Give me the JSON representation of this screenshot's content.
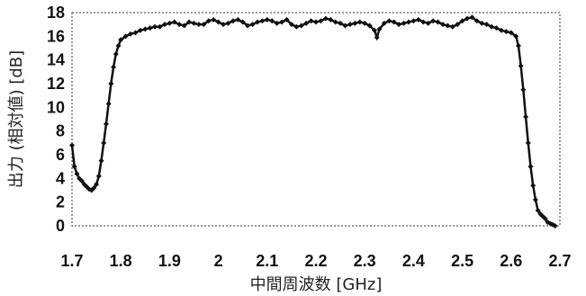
{
  "chart_data": {
    "type": "scatter",
    "title": "",
    "xlabel": "中間周波数 [GHz]",
    "ylabel": "出力 (相対値) [dB]",
    "xlim": [
      1.7,
      2.7
    ],
    "ylim": [
      0,
      18
    ],
    "x_ticks": [
      "1.7",
      "1.8",
      "1.9",
      "2",
      "2.1",
      "2.2",
      "2.3",
      "2.4",
      "2.5",
      "2.6",
      "2.7"
    ],
    "y_ticks": [
      "0",
      "2",
      "4",
      "6",
      "8",
      "10",
      "12",
      "14",
      "16",
      "18"
    ],
    "grid": false,
    "legend": "none",
    "marker": "diamond",
    "color": "#111111",
    "series": [
      {
        "x": [
          1.7,
          1.705,
          1.71,
          1.715,
          1.72,
          1.725,
          1.73,
          1.735,
          1.74,
          1.745,
          1.75,
          1.755,
          1.76,
          1.765,
          1.77,
          1.775,
          1.78,
          1.785,
          1.79,
          1.795,
          1.8,
          1.81,
          1.82,
          1.83,
          1.84,
          1.85,
          1.86,
          1.87,
          1.88,
          1.89,
          1.9,
          1.91,
          1.92,
          1.93,
          1.94,
          1.95,
          1.96,
          1.97,
          1.98,
          1.99,
          2.0,
          2.01,
          2.02,
          2.03,
          2.04,
          2.05,
          2.06,
          2.07,
          2.08,
          2.09,
          2.1,
          2.11,
          2.12,
          2.13,
          2.14,
          2.15,
          2.16,
          2.17,
          2.18,
          2.19,
          2.2,
          2.21,
          2.22,
          2.23,
          2.24,
          2.25,
          2.26,
          2.27,
          2.28,
          2.29,
          2.3,
          2.31,
          2.32,
          2.325,
          2.33,
          2.34,
          2.35,
          2.36,
          2.37,
          2.38,
          2.39,
          2.4,
          2.41,
          2.42,
          2.43,
          2.44,
          2.45,
          2.46,
          2.47,
          2.48,
          2.49,
          2.5,
          2.51,
          2.52,
          2.53,
          2.54,
          2.55,
          2.56,
          2.57,
          2.58,
          2.59,
          2.6,
          2.61,
          2.615,
          2.62,
          2.625,
          2.63,
          2.635,
          2.64,
          2.645,
          2.65,
          2.655,
          2.66,
          2.665,
          2.67,
          2.675,
          2.68,
          2.685,
          2.69
        ],
        "y": [
          6.8,
          5.0,
          4.4,
          4.0,
          3.8,
          3.5,
          3.3,
          3.1,
          3.0,
          3.2,
          3.5,
          4.2,
          5.5,
          7.0,
          8.6,
          10.3,
          12.0,
          13.4,
          14.5,
          15.2,
          15.7,
          16.0,
          16.2,
          16.3,
          16.5,
          16.6,
          16.7,
          16.8,
          16.8,
          17.0,
          17.1,
          17.2,
          17.0,
          16.9,
          17.2,
          17.1,
          17.0,
          17.0,
          17.3,
          17.4,
          17.2,
          17.0,
          17.1,
          17.3,
          17.4,
          17.2,
          16.9,
          17.0,
          17.2,
          17.3,
          17.4,
          17.3,
          17.1,
          17.2,
          17.4,
          17.0,
          16.8,
          16.9,
          17.1,
          17.3,
          17.2,
          17.3,
          17.5,
          17.4,
          17.2,
          17.1,
          16.9,
          17.0,
          17.1,
          17.2,
          17.1,
          16.9,
          16.5,
          15.9,
          16.6,
          17.1,
          17.3,
          17.2,
          17.0,
          17.1,
          17.2,
          17.3,
          17.4,
          17.2,
          17.1,
          17.3,
          17.2,
          17.0,
          16.9,
          16.8,
          17.0,
          17.3,
          17.5,
          17.6,
          17.3,
          17.1,
          17.0,
          16.8,
          16.7,
          16.5,
          16.4,
          16.3,
          16.0,
          15.2,
          13.5,
          11.5,
          9.2,
          7.0,
          5.0,
          3.4,
          2.2,
          1.3,
          1.0,
          0.8,
          0.6,
          0.3,
          0.2,
          0.1,
          0.0
        ]
      }
    ]
  }
}
